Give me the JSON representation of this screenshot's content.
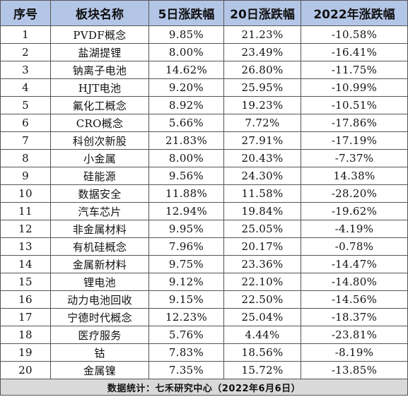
{
  "table": {
    "headers": [
      "序号",
      "板块名称",
      "5日涨跌幅",
      "20日涨跌幅",
      "2022年涨跌幅"
    ],
    "rows": [
      [
        "1",
        "PVDF概念",
        "9.85%",
        "21.23%",
        "-10.58%"
      ],
      [
        "2",
        "盐湖提锂",
        "8.00%",
        "23.49%",
        "-16.41%"
      ],
      [
        "3",
        "钠离子电池",
        "14.62%",
        "26.80%",
        "-11.75%"
      ],
      [
        "4",
        "HJT电池",
        "9.20%",
        "25.95%",
        "-10.99%"
      ],
      [
        "5",
        "氟化工概念",
        "8.92%",
        "19.23%",
        "-10.51%"
      ],
      [
        "6",
        "CRO概念",
        "5.66%",
        "7.72%",
        "-17.86%"
      ],
      [
        "7",
        "科创次新股",
        "21.83%",
        "27.91%",
        "-17.19%"
      ],
      [
        "8",
        "小金属",
        "8.00%",
        "20.43%",
        "-7.37%"
      ],
      [
        "9",
        "硅能源",
        "9.56%",
        "24.30%",
        "14.38%"
      ],
      [
        "10",
        "数据安全",
        "11.88%",
        "11.58%",
        "-28.20%"
      ],
      [
        "11",
        "汽车芯片",
        "12.94%",
        "19.84%",
        "-19.62%"
      ],
      [
        "12",
        "非金属材料",
        "9.95%",
        "25.05%",
        "-4.19%"
      ],
      [
        "13",
        "有机硅概念",
        "7.96%",
        "20.17%",
        "-0.78%"
      ],
      [
        "14",
        "金属新材料",
        "9.75%",
        "23.36%",
        "-14.47%"
      ],
      [
        "15",
        "锂电池",
        "9.12%",
        "22.10%",
        "-14.80%"
      ],
      [
        "16",
        "动力电池回收",
        "9.15%",
        "22.50%",
        "-14.56%"
      ],
      [
        "17",
        "宁德时代概念",
        "12.23%",
        "25.04%",
        "-18.37%"
      ],
      [
        "18",
        "医疗服务",
        "5.76%",
        "4.44%",
        "-23.81%"
      ],
      [
        "19",
        "钴",
        "7.83%",
        "18.56%",
        "-8.19%"
      ],
      [
        "20",
        "金属镍",
        "7.35%",
        "15.72%",
        "-13.85%"
      ]
    ]
  },
  "footer": {
    "source": "数据统计：七禾研究中心（2022年6月6日）"
  }
}
